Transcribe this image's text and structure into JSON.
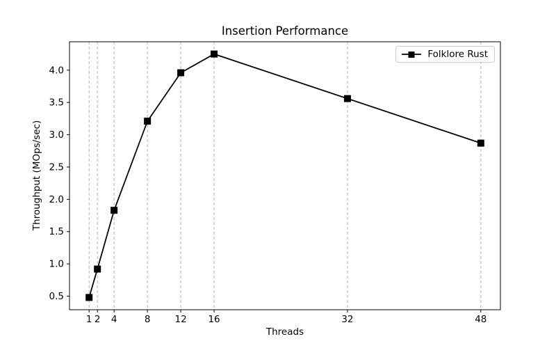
{
  "chart_data": {
    "type": "line",
    "title": "Insertion Performance",
    "xlabel": "Threads",
    "ylabel": "Throughput (MOps/sec)",
    "x": [
      1,
      2,
      4,
      8,
      12,
      16,
      32,
      48
    ],
    "series": [
      {
        "name": "Folklore Rust",
        "values": [
          0.48,
          0.92,
          1.83,
          3.21,
          3.96,
          4.25,
          3.56,
          2.87
        ],
        "color": "#000000",
        "marker": "square"
      }
    ],
    "xticks": [
      1,
      2,
      4,
      8,
      12,
      16,
      32,
      48
    ],
    "xtick_labels": [
      "1",
      "2",
      "4",
      "8",
      "12",
      "16",
      "32",
      "48"
    ],
    "yticks": [
      0.5,
      1.0,
      1.5,
      2.0,
      2.5,
      3.0,
      3.5,
      4.0
    ],
    "ytick_labels": [
      "0.5",
      "1.0",
      "1.5",
      "2.0",
      "2.5",
      "3.0",
      "3.5",
      "4.0"
    ],
    "xlim": [
      -1.35,
      50.35
    ],
    "ylim": [
      0.29,
      4.44
    ],
    "grid": {
      "vertical": true,
      "horizontal": false,
      "style": "dashed",
      "color": "#b0b0b0"
    },
    "legend": {
      "position": "upper right"
    },
    "colors": {
      "line": "#000000",
      "marker": "#000000",
      "background": "#ffffff",
      "spine": "#000000",
      "text": "#000000",
      "gridline": "#b0b0b0",
      "legend_border": "#cccccc"
    }
  }
}
